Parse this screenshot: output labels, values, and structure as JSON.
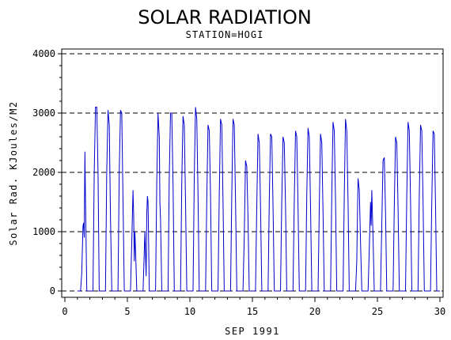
{
  "chart_data": {
    "type": "line",
    "title": "SOLAR RADIATION",
    "subtitle": "STATION=HOGI",
    "xlabel": "SEP 1991",
    "ylabel": "Solar Rad. KJoules/M2",
    "xlim": [
      0,
      30
    ],
    "ylim": [
      0,
      4000
    ],
    "x_ticks": [
      0,
      5,
      10,
      15,
      20,
      25,
      30
    ],
    "x_tick_labels": [
      "0",
      "5",
      "10",
      "15",
      "20",
      "25",
      "30"
    ],
    "y_ticks": [
      0,
      1000,
      2000,
      3000,
      4000
    ],
    "y_tick_labels": [
      "0",
      "1000",
      "2000",
      "3000",
      "4000"
    ],
    "grid": "horizontal dashed",
    "line_color": "#0000cc",
    "series": [
      {
        "x": [
          1.0,
          1.25,
          1.35,
          1.45,
          1.5,
          1.55,
          1.6,
          1.65,
          1.75,
          2.0,
          2.25,
          2.35,
          2.45,
          2.55,
          2.65,
          2.75,
          3.0,
          3.25,
          3.35,
          3.45,
          3.55,
          3.65,
          3.75,
          4.0,
          4.25,
          4.35,
          4.45,
          4.55,
          4.65,
          4.75,
          5.0,
          5.25,
          5.35,
          5.45,
          5.5,
          5.55,
          5.6,
          5.65,
          5.75,
          6.0,
          6.25,
          6.3,
          6.4,
          6.5,
          6.55,
          6.6,
          6.65,
          6.75,
          7.0,
          7.25,
          7.35,
          7.45,
          7.55,
          7.6,
          7.65,
          7.75,
          8.0,
          8.25,
          8.35,
          8.45,
          8.55,
          8.65,
          8.75,
          9.0,
          9.25,
          9.35,
          9.45,
          9.55,
          9.65,
          9.75,
          10.0,
          10.25,
          10.35,
          10.45,
          10.55,
          10.65,
          10.75,
          11.0,
          11.25,
          11.35,
          11.45,
          11.55,
          11.65,
          11.75,
          12.0,
          12.25,
          12.35,
          12.45,
          12.55,
          12.65,
          12.75,
          13.0,
          13.25,
          13.35,
          13.45,
          13.55,
          13.65,
          13.75,
          14.0,
          14.25,
          14.35,
          14.45,
          14.55,
          14.65,
          14.75,
          15.0,
          15.25,
          15.35,
          15.45,
          15.55,
          15.65,
          15.75,
          16.0,
          16.25,
          16.35,
          16.45,
          16.55,
          16.65,
          16.75,
          17.0,
          17.25,
          17.35,
          17.45,
          17.55,
          17.65,
          17.75,
          18.0,
          18.25,
          18.35,
          18.45,
          18.55,
          18.65,
          18.75,
          19.0,
          19.25,
          19.35,
          19.45,
          19.55,
          19.65,
          19.75,
          20.0,
          20.25,
          20.35,
          20.45,
          20.55,
          20.65,
          20.75,
          21.0,
          21.25,
          21.35,
          21.45,
          21.55,
          21.65,
          21.75,
          22.0,
          22.25,
          22.35,
          22.45,
          22.55,
          22.65,
          22.75,
          23.0,
          23.25,
          23.35,
          23.45,
          23.55,
          23.65,
          23.75,
          24.0,
          24.25,
          24.35,
          24.45,
          24.5,
          24.55,
          24.65,
          24.75,
          25.0,
          25.25,
          25.35,
          25.45,
          25.55,
          25.65,
          25.75,
          26.0,
          26.25,
          26.35,
          26.45,
          26.55,
          26.65,
          26.75,
          27.0,
          27.25,
          27.35,
          27.45,
          27.55,
          27.65,
          27.75,
          28.0,
          28.25,
          28.35,
          28.45,
          28.55,
          28.65,
          28.75,
          29.0,
          29.25,
          29.35,
          29.45,
          29.55,
          29.65,
          29.75,
          30.0
        ],
        "y": [
          0,
          0,
          300,
          1100,
          1150,
          900,
          2350,
          1500,
          0,
          0,
          0,
          2000,
          3100,
          3100,
          2000,
          0,
          0,
          0,
          2000,
          3050,
          2800,
          1200,
          0,
          0,
          0,
          2000,
          3050,
          3000,
          1500,
          0,
          0,
          0,
          800,
          1700,
          1300,
          500,
          1000,
          700,
          0,
          0,
          0,
          300,
          1000,
          250,
          1300,
          1600,
          1500,
          0,
          0,
          0,
          1800,
          3000,
          2600,
          1500,
          1200,
          0,
          0,
          0,
          1900,
          3000,
          3000,
          1800,
          0,
          0,
          0,
          1800,
          2950,
          2800,
          1500,
          0,
          0,
          0,
          1900,
          3100,
          2900,
          1600,
          0,
          0,
          0,
          1500,
          2800,
          2700,
          1600,
          0,
          0,
          0,
          1600,
          2900,
          2800,
          1500,
          0,
          0,
          0,
          1600,
          2900,
          2800,
          1500,
          0,
          0,
          0,
          900,
          2200,
          2100,
          1200,
          0,
          0,
          0,
          1400,
          2650,
          2500,
          1400,
          0,
          0,
          0,
          1500,
          2650,
          2600,
          1400,
          0,
          0,
          0,
          1500,
          2600,
          2500,
          1400,
          0,
          0,
          0,
          1500,
          2700,
          2600,
          1400,
          0,
          0,
          0,
          1600,
          2750,
          2600,
          1400,
          0,
          0,
          0,
          1400,
          2650,
          2500,
          1300,
          0,
          0,
          0,
          1600,
          2850,
          2700,
          1500,
          0,
          0,
          0,
          1600,
          2900,
          2700,
          1500,
          0,
          0,
          0,
          500,
          1900,
          1700,
          800,
          0,
          0,
          0,
          700,
          1500,
          1100,
          1700,
          900,
          0,
          0,
          0,
          1100,
          2200,
          2250,
          1300,
          0,
          0,
          0,
          1400,
          2600,
          2500,
          1400,
          0,
          0,
          0,
          1600,
          2850,
          2700,
          1500,
          0,
          0,
          0,
          1600,
          2800,
          2700,
          1500,
          0,
          0,
          0,
          1500,
          2700,
          2650,
          1400,
          0,
          0
        ]
      }
    ]
  }
}
